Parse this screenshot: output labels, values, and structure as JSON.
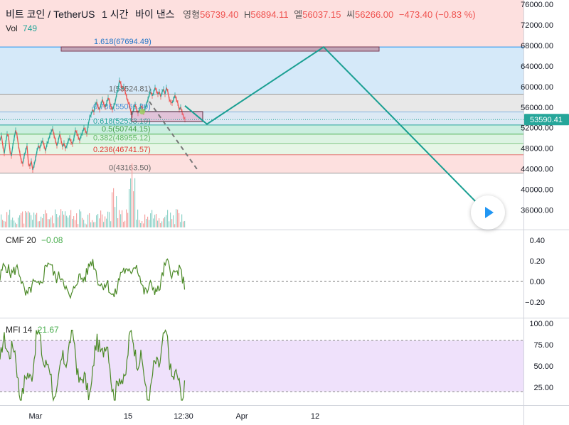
{
  "header": {
    "symbol": "비트 코인 / TetherUS",
    "interval": "1 시간",
    "exchange": "바이 낸스",
    "open_label": "영형",
    "open": "56739.40",
    "high_label": "H",
    "high": "56894.11",
    "low_label": "엘",
    "low": "56037.15",
    "close_label": "씨",
    "close": "56266.00",
    "change": "−473.40 (−0.83 %)"
  },
  "volume_legend": {
    "label": "Vol",
    "value": "749"
  },
  "cmf_legend": {
    "label": "CMF 20",
    "value": "−0.08"
  },
  "mfi_legend": {
    "label": "MFI 14",
    "value": "21.67"
  },
  "price_badge": "53590.41",
  "colors": {
    "up": "#26a69a",
    "down": "#ef5350",
    "projection": "#1a9f92",
    "indicator": "#4c8a28",
    "price_badge": "#26a69a",
    "fib_box": "#eb7ea5"
  },
  "icons": {
    "play": "play-icon"
  },
  "chart_data": {
    "type": "line",
    "x_ticks": [
      "Mar",
      "15",
      "12:30",
      "Apr",
      "12"
    ],
    "price_axis": {
      "ticks": [
        "76000.00",
        "72000.00",
        "68000.00",
        "64000.00",
        "60000.00",
        "56000.00",
        "52000.00",
        "48000.00",
        "44000.00",
        "40000.00",
        "36000.00"
      ],
      "range": [
        32500,
        76500
      ]
    },
    "fib_levels": [
      {
        "ratio": "1.618",
        "price": 67694.49,
        "label": "1.618(67694.49)"
      },
      {
        "ratio": "1",
        "price": 58524.81,
        "label": "1(58524.81)"
      },
      {
        "ratio": "0.786",
        "price": 55066.8,
        "label": "0.786(55066.80)"
      },
      {
        "ratio": "0.618",
        "price": 52533.19,
        "label": "0.618(52533.19)"
      },
      {
        "ratio": "0.5",
        "price": 50744.15,
        "label": "0.5(50744.15)"
      },
      {
        "ratio": "0.382",
        "price": 48955.12,
        "label": "0.382(48955.12)"
      },
      {
        "ratio": "0.236",
        "price": 46741.57,
        "label": "0.236(46741.57)"
      },
      {
        "ratio": "0",
        "price": 43163.5,
        "label": "0(43163.50)"
      }
    ],
    "price_series": [
      [
        0,
        49500
      ],
      [
        2,
        50500
      ],
      [
        4,
        48500
      ],
      [
        6,
        47000
      ],
      [
        8,
        49000
      ],
      [
        10,
        50800
      ],
      [
        12,
        50200
      ],
      [
        14,
        47500
      ],
      [
        16,
        46500
      ],
      [
        18,
        48500
      ],
      [
        20,
        50000
      ],
      [
        22,
        51500
      ],
      [
        24,
        50500
      ],
      [
        26,
        48500
      ],
      [
        28,
        47000
      ],
      [
        30,
        45500
      ],
      [
        32,
        45000
      ],
      [
        34,
        46500
      ],
      [
        36,
        47500
      ],
      [
        38,
        48500
      ],
      [
        40,
        45000
      ],
      [
        42,
        44500
      ],
      [
        44,
        45500
      ],
      [
        46,
        43800
      ],
      [
        48,
        44800
      ],
      [
        50,
        46000
      ],
      [
        52,
        47500
      ],
      [
        54,
        48500
      ],
      [
        56,
        48000
      ],
      [
        58,
        49000
      ],
      [
        60,
        49500
      ],
      [
        62,
        48500
      ],
      [
        64,
        47500
      ],
      [
        66,
        48800
      ],
      [
        68,
        49500
      ],
      [
        70,
        50500
      ],
      [
        72,
        51200
      ],
      [
        74,
        51800
      ],
      [
        76,
        50500
      ],
      [
        78,
        49500
      ],
      [
        80,
        48500
      ],
      [
        82,
        49500
      ],
      [
        84,
        50800
      ],
      [
        86,
        49500
      ],
      [
        88,
        48300
      ],
      [
        90,
        49000
      ],
      [
        92,
        48000
      ],
      [
        94,
        48500
      ],
      [
        96,
        49500
      ],
      [
        98,
        50000
      ],
      [
        100,
        49200
      ],
      [
        102,
        48800
      ],
      [
        104,
        50000
      ],
      [
        106,
        51500
      ],
      [
        108,
        51000
      ],
      [
        110,
        50200
      ],
      [
        112,
        49500
      ],
      [
        114,
        50500
      ],
      [
        116,
        51000
      ],
      [
        118,
        52000
      ],
      [
        120,
        51500
      ],
      [
        122,
        50800
      ],
      [
        124,
        52500
      ],
      [
        126,
        54000
      ],
      [
        128,
        54500
      ],
      [
        130,
        55500
      ],
      [
        132,
        55000
      ],
      [
        134,
        56500
      ],
      [
        136,
        57000
      ],
      [
        138,
        56000
      ],
      [
        140,
        55500
      ],
      [
        142,
        56500
      ],
      [
        144,
        57500
      ],
      [
        146,
        56500
      ],
      [
        148,
        56000
      ],
      [
        150,
        56800
      ],
      [
        152,
        57800
      ],
      [
        154,
        57200
      ],
      [
        156,
        56000
      ],
      [
        158,
        55500
      ],
      [
        160,
        56200
      ],
      [
        162,
        57000
      ],
      [
        164,
        58500
      ],
      [
        166,
        59500
      ],
      [
        168,
        61200
      ],
      [
        170,
        60500
      ],
      [
        172,
        59500
      ],
      [
        174,
        60000
      ],
      [
        176,
        59000
      ],
      [
        178,
        58000
      ],
      [
        180,
        57000
      ],
      [
        182,
        56500
      ],
      [
        184,
        55000
      ],
      [
        186,
        54500
      ],
      [
        188,
        55800
      ],
      [
        190,
        56500
      ],
      [
        192,
        55500
      ],
      [
        194,
        54800
      ],
      [
        196,
        55500
      ],
      [
        198,
        56200
      ],
      [
        200,
        55800
      ],
      [
        202,
        55000
      ],
      [
        204,
        55800
      ],
      [
        206,
        56500
      ],
      [
        208,
        57500
      ],
      [
        210,
        58500
      ],
      [
        212,
        59000
      ],
      [
        214,
        58200
      ],
      [
        216,
        58800
      ],
      [
        218,
        59800
      ],
      [
        220,
        59200
      ],
      [
        222,
        58500
      ],
      [
        224,
        59000
      ],
      [
        226,
        58000
      ],
      [
        228,
        59000
      ],
      [
        230,
        59500
      ],
      [
        232,
        58500
      ],
      [
        234,
        59800
      ],
      [
        236,
        59000
      ],
      [
        238,
        57500
      ],
      [
        240,
        57000
      ],
      [
        242,
        56800
      ],
      [
        244,
        57500
      ],
      [
        246,
        58300
      ],
      [
        248,
        57500
      ],
      [
        250,
        56800
      ],
      [
        252,
        55500
      ],
      [
        254,
        56000
      ],
      [
        256,
        55000
      ],
      [
        258,
        54200
      ],
      [
        260,
        53600
      ]
    ],
    "projection": [
      [
        260,
        56266
      ],
      [
        291,
        52700
      ],
      [
        455,
        67694
      ],
      [
        679,
        36200
      ]
    ]
  }
}
